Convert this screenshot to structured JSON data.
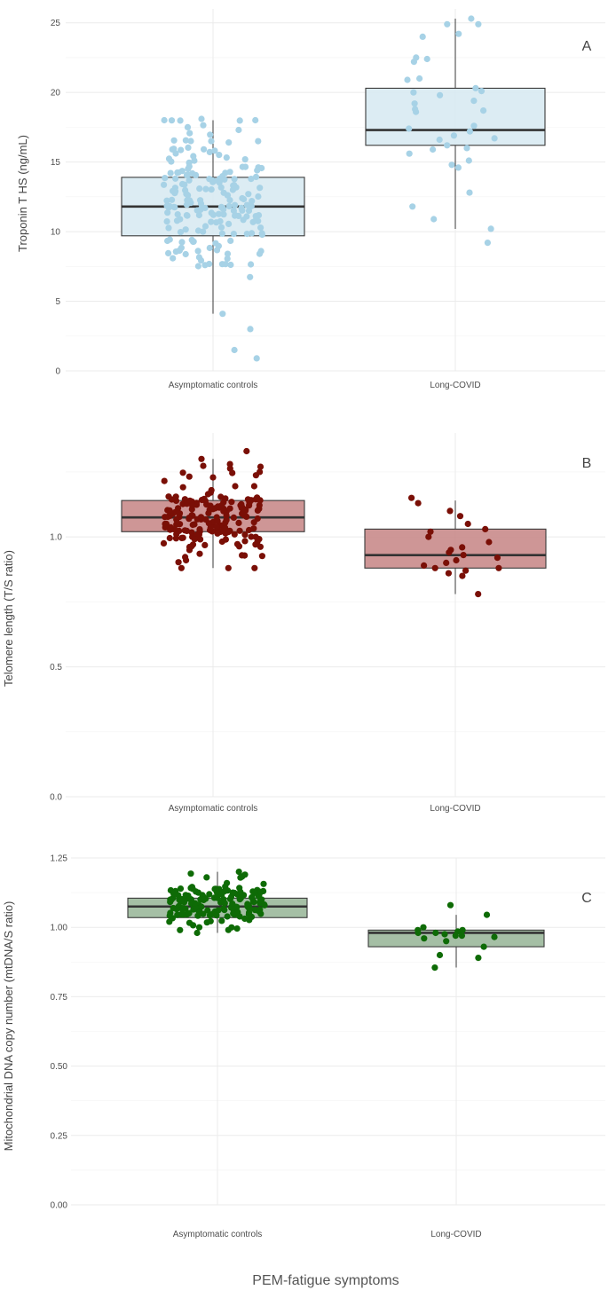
{
  "figure": {
    "xlabel": "PEM-fatigue symptoms"
  },
  "chart_data": [
    {
      "type": "boxplot",
      "panel_label": "A",
      "ylabel": "Troponin T HS (ng/mL)",
      "categories": [
        "Asymptomatic controls",
        "Long-COVID"
      ],
      "ylim": [
        0,
        26
      ],
      "yticks": [
        0,
        5,
        10,
        15,
        20,
        25
      ],
      "ytick_labels": [
        "0",
        "5",
        "10",
        "15",
        "20",
        "25"
      ],
      "colors": {
        "fill": "#d8eaf2",
        "stroke": "#3a3a3a",
        "point": "#a7d2e6"
      },
      "boxes": [
        {
          "category": "Asymptomatic controls",
          "min": 4.1,
          "q1": 9.7,
          "median": 11.8,
          "q3": 13.9,
          "max": 18.0
        },
        {
          "category": "Long-COVID",
          "min": 10.2,
          "q1": 16.2,
          "median": 17.3,
          "q3": 20.3,
          "max": 25.3
        }
      ],
      "points": [
        {
          "category": "Asymptomatic controls",
          "n": 190,
          "center": 12.0,
          "sd": 2.7,
          "min": 3.0,
          "max": 18.0,
          "extra": [
            1.5,
            0.9,
            3.0,
            4.1,
            18.1,
            17.5,
            17.3,
            16.5
          ]
        },
        {
          "category": "Long-COVID",
          "n": 0,
          "center": 18.0,
          "sd": 3.5,
          "min": 9.0,
          "max": 25.3,
          "extra": [
            25.3,
            24.9,
            24.9,
            24.2,
            24.0,
            22.5,
            22.4,
            22.2,
            21.0,
            20.9,
            20.3,
            20.1,
            20.0,
            19.4,
            19.2,
            18.8,
            18.7,
            18.6,
            17.4,
            17.2,
            16.9,
            16.7,
            16.6,
            16.2,
            16.0,
            15.6,
            15.1,
            14.8,
            14.6,
            12.8,
            11.8,
            10.9,
            10.2,
            9.2,
            17.6,
            19.8,
            15.9
          ]
        }
      ]
    },
    {
      "type": "boxplot",
      "panel_label": "B",
      "ylabel": "Telomere length (T/S ratio)",
      "categories": [
        "Asymptomatic controls",
        "Long-COVID"
      ],
      "ylim": [
        0,
        1.4
      ],
      "yticks": [
        0,
        0.5,
        1.0
      ],
      "ytick_labels": [
        "0.0",
        "0.5",
        "1.0"
      ],
      "colors": {
        "fill": "#c98b8b",
        "stroke": "#3a3a3a",
        "point": "#7a0f06"
      },
      "boxes": [
        {
          "category": "Asymptomatic controls",
          "min": 0.88,
          "q1": 1.02,
          "median": 1.075,
          "q3": 1.14,
          "max": 1.3
        },
        {
          "category": "Long-COVID",
          "min": 0.78,
          "q1": 0.88,
          "median": 0.93,
          "q3": 1.03,
          "max": 1.14
        }
      ],
      "points": [
        {
          "category": "Asymptomatic controls",
          "n": 170,
          "center": 1.07,
          "sd": 0.075,
          "min": 0.88,
          "max": 1.3,
          "extra": [
            1.33,
            1.3,
            1.28,
            1.27,
            0.88,
            0.91,
            1.25
          ]
        },
        {
          "category": "Long-COVID",
          "n": 0,
          "center": 0.95,
          "sd": 0.08,
          "min": 0.78,
          "max": 1.15,
          "extra": [
            1.15,
            1.13,
            1.1,
            1.08,
            1.05,
            1.03,
            1.02,
            1.0,
            0.98,
            0.95,
            0.94,
            0.93,
            0.92,
            0.91,
            0.9,
            0.89,
            0.88,
            0.88,
            0.87,
            0.86,
            0.85,
            0.78,
            0.96
          ]
        }
      ]
    },
    {
      "type": "boxplot",
      "panel_label": "C",
      "ylabel": "Mitochondrial DNA copy number (mtDNA/S ratio)",
      "categories": [
        "Asymptomatic controls",
        "Long-COVID"
      ],
      "ylim": [
        0,
        1.25
      ],
      "yticks": [
        0,
        0.25,
        0.5,
        0.75,
        1.0,
        1.25
      ],
      "ytick_labels": [
        "0.00",
        "0.25",
        "0.50",
        "0.75",
        "1.00",
        "1.25"
      ],
      "colors": {
        "fill": "#9bb89b",
        "stroke": "#3a3a3a",
        "point": "#0e6b06"
      },
      "boxes": [
        {
          "category": "Asymptomatic controls",
          "min": 0.98,
          "q1": 1.035,
          "median": 1.075,
          "q3": 1.105,
          "max": 1.2
        },
        {
          "category": "Long-COVID",
          "min": 0.855,
          "q1": 0.93,
          "median": 0.98,
          "q3": 0.99,
          "max": 1.045
        }
      ],
      "points": [
        {
          "category": "Asymptomatic controls",
          "n": 160,
          "center": 1.08,
          "sd": 0.04,
          "min": 0.98,
          "max": 1.2,
          "extra": [
            1.2,
            1.19,
            1.18,
            1.0,
            0.99,
            0.98
          ]
        },
        {
          "category": "Long-COVID",
          "n": 0,
          "center": 0.97,
          "sd": 0.04,
          "min": 0.85,
          "max": 1.08,
          "extra": [
            1.08,
            1.045,
            1.0,
            0.99,
            0.99,
            0.985,
            0.98,
            0.975,
            0.97,
            0.965,
            0.96,
            0.95,
            0.93,
            0.9,
            0.89,
            0.855,
            0.98,
            0.97
          ]
        }
      ]
    }
  ]
}
